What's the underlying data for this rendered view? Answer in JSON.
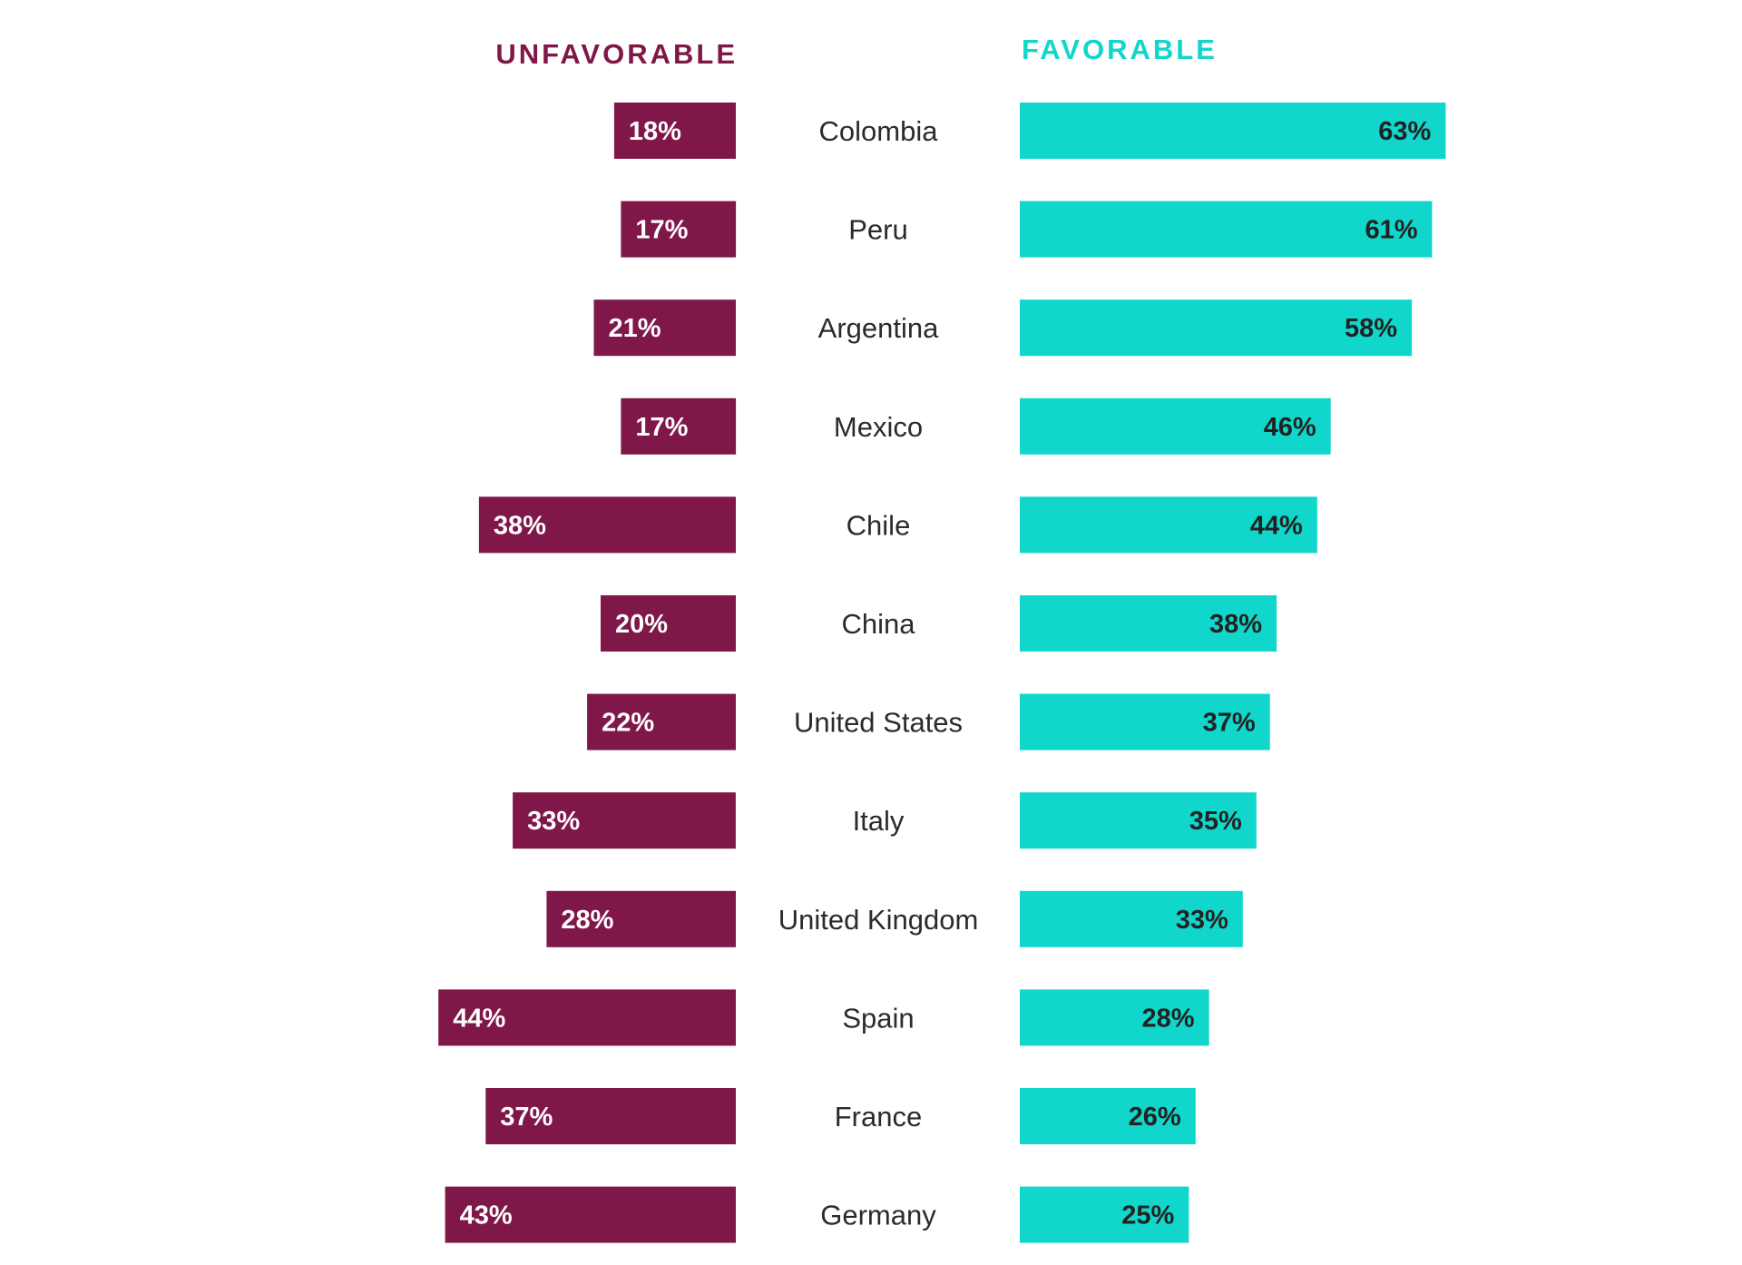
{
  "colors": {
    "unfavorable": "#7f1749",
    "favorable": "#10d6cb",
    "unfavorable_label_text": "#ffffff",
    "favorable_label_text": "#222222",
    "country_text": "#2b2b2b"
  },
  "headers": {
    "unfavorable": "UNFAVORABLE",
    "favorable": "FAVORABLE"
  },
  "chart_data": {
    "type": "bar",
    "orientation": "diverging-horizontal",
    "categories": [
      "Colombia",
      "Peru",
      "Argentina",
      "Mexico",
      "Chile",
      "China",
      "United States",
      "Italy",
      "United Kingdom",
      "Spain",
      "France",
      "Germany"
    ],
    "series": [
      {
        "name": "UNFAVORABLE",
        "values": [
          18,
          17,
          21,
          17,
          38,
          20,
          22,
          33,
          28,
          44,
          37,
          43
        ],
        "labels": [
          "18%",
          "17%",
          "21%",
          "17%",
          "38%",
          "20%",
          "22%",
          "33%",
          "28%",
          "44%",
          "37%",
          "43%"
        ]
      },
      {
        "name": "FAVORABLE",
        "values": [
          63,
          61,
          58,
          46,
          44,
          38,
          37,
          35,
          33,
          28,
          26,
          25
        ],
        "labels": [
          "63%",
          "61%",
          "58%",
          "46%",
          "44%",
          "38%",
          "37%",
          "35%",
          "33%",
          "28%",
          "26%",
          "25%"
        ]
      }
    ],
    "unit": "%",
    "grid": false,
    "legend": "top"
  }
}
